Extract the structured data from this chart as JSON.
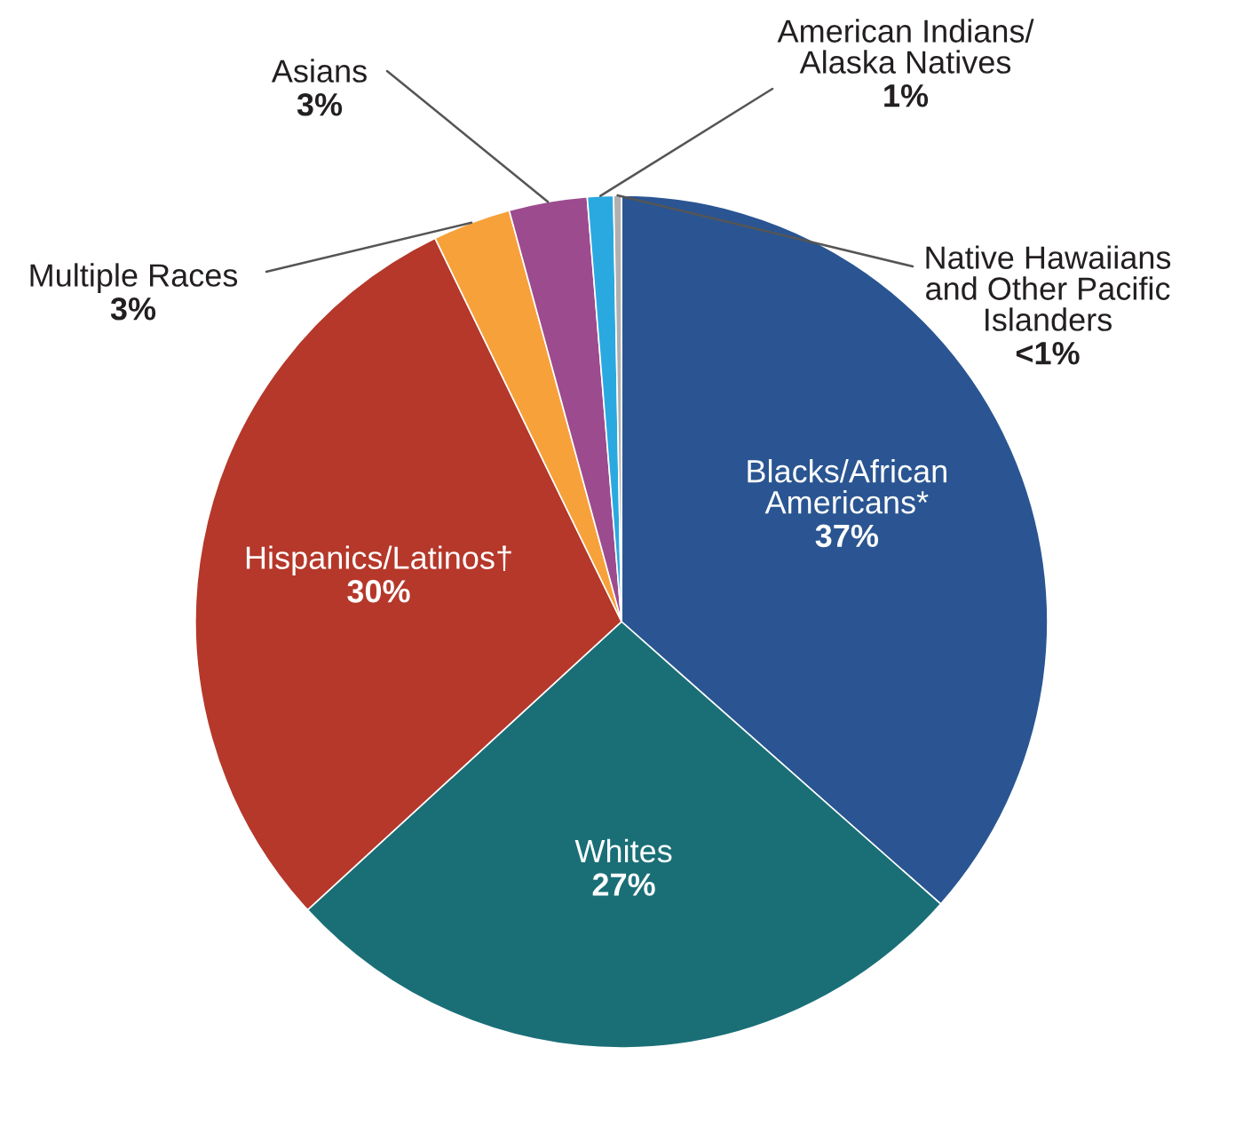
{
  "chart_data": {
    "type": "pie",
    "categories": [
      "Blacks/African\nAmericans*",
      "Whites",
      "Hispanics/Latinos†",
      "Multiple Races",
      "Asians",
      "American Indians/\nAlaska Natives",
      "Native Hawaiians\nand Other Pacific\nIslanders"
    ],
    "values": [
      37,
      27,
      30,
      3,
      3,
      1,
      0.3
    ],
    "value_labels": [
      "37%",
      "27%",
      "30%",
      "3%",
      "3%",
      "1%",
      "<1%"
    ],
    "colors": [
      "#2a5592",
      "#1a6f77",
      "#b5382a",
      "#f7a13b",
      "#9c4b8e",
      "#2aa9e0",
      "#b0b0b0"
    ]
  }
}
